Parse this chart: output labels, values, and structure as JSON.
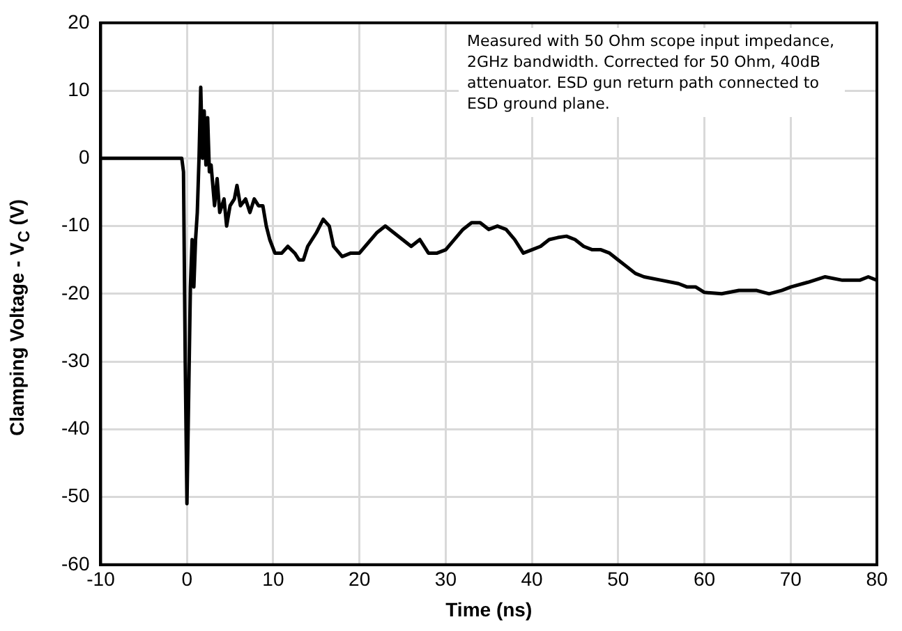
{
  "chart_data": {
    "type": "line",
    "xlabel": "Time (ns)",
    "ylabel": "Clamping Voltage - V$_{C}$ (V)",
    "annotations": [
      "Measured with 50 Ohm scope input impedance, 2GHz bandwidth. Corrected for 50 Ohm, 40dB attenuator. ESD gun return path connected to ESD ground plane."
    ],
    "xlim": [
      -10,
      80
    ],
    "xticks": [
      -10,
      0,
      10,
      20,
      30,
      40,
      50,
      60,
      70,
      80
    ],
    "ylim": [
      -60,
      20
    ],
    "yticks": [
      -60,
      -50,
      -40,
      -30,
      -20,
      -10,
      0,
      10,
      20
    ],
    "grid": true,
    "legend": false,
    "marker": "none",
    "line_style": "solid",
    "series": [
      {
        "color": "#000000",
        "x": [
          -10,
          -0.6,
          -0.4,
          -0.2,
          0,
          0.2,
          0.4,
          0.6,
          0.8,
          1.0,
          1.2,
          1.4,
          1.6,
          1.8,
          2.0,
          2.2,
          2.4,
          2.6,
          2.8,
          3.2,
          3.5,
          3.8,
          4.3,
          4.6,
          5,
          5.5,
          5.8,
          6.2,
          6.8,
          7.3,
          7.8,
          8.3,
          8.8,
          9.2,
          9.6,
          10.2,
          11,
          11.7,
          12.5,
          13,
          13.5,
          14,
          15,
          15.8,
          16.5,
          17,
          18,
          19,
          20,
          21,
          22,
          23,
          24,
          25,
          26,
          27,
          28,
          29,
          30,
          31,
          32,
          33,
          34,
          35,
          36,
          37,
          38,
          39,
          40,
          41,
          42,
          43,
          44,
          45,
          46,
          47,
          48,
          49,
          50,
          51,
          52,
          53,
          55,
          57,
          58,
          59,
          60,
          62,
          64,
          66,
          67.5,
          69,
          70,
          72,
          74,
          76,
          78,
          79,
          80
        ],
        "values": [
          0,
          0,
          -2,
          -30,
          -51,
          -35,
          -19,
          -12,
          -19,
          -12,
          -8,
          0,
          10.5,
          0,
          7,
          -1,
          6,
          -2,
          -1,
          -7,
          -3,
          -8,
          -6,
          -10,
          -7,
          -6,
          -4,
          -7,
          -6,
          -8,
          -6,
          -7,
          -7,
          -10,
          -12,
          -14,
          -14,
          -13,
          -14,
          -15,
          -15,
          -13,
          -11,
          -9,
          -10,
          -13,
          -14.5,
          -14,
          -14,
          -12.5,
          -11,
          -10,
          -11,
          -12,
          -13,
          -12,
          -14,
          -14,
          -13.5,
          -12,
          -10.5,
          -9.5,
          -9.5,
          -10.5,
          -10,
          -10.5,
          -12,
          -14,
          -13.5,
          -13,
          -12,
          -11.7,
          -11.5,
          -12,
          -13,
          -13.5,
          -13.5,
          -14,
          -15,
          -16,
          -17,
          -17.5,
          -18,
          -18.5,
          -19,
          -19,
          -19.8,
          -20,
          -19.5,
          -19.5,
          -20,
          -19.5,
          -19,
          -18.3,
          -17.5,
          -18,
          -18,
          -17.5,
          -18
        ]
      }
    ]
  }
}
